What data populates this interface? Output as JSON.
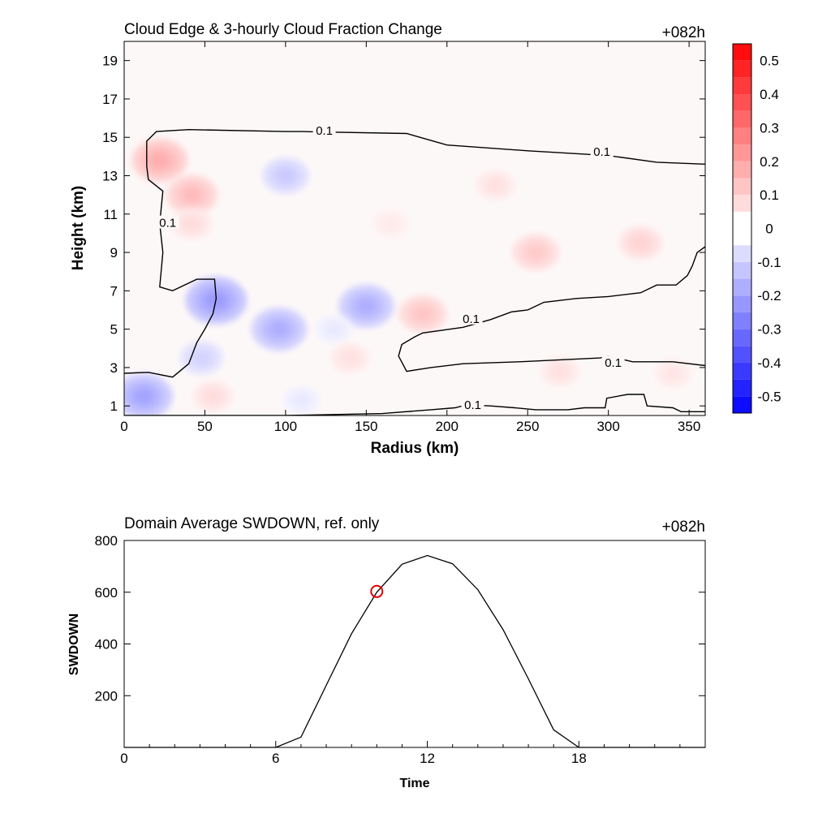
{
  "chart_data": [
    {
      "type": "heatmap",
      "title": "Cloud Edge & 3-hourly Cloud Fraction Change",
      "time_label": "+082h",
      "xlabel": "Radius (km)",
      "ylabel": "Height (km)",
      "xlim": [
        0,
        360
      ],
      "ylim": [
        0.5,
        20
      ],
      "xticks": [
        0,
        50,
        100,
        150,
        200,
        250,
        300,
        350
      ],
      "yticks": [
        1,
        3,
        5,
        7,
        9,
        11,
        13,
        15,
        17,
        19
      ],
      "colorbar": {
        "levels": [
          -0.55,
          -0.5,
          -0.45,
          -0.4,
          -0.35,
          -0.3,
          -0.25,
          -0.2,
          -0.15,
          -0.1,
          -0.05,
          0.05,
          0.1,
          0.15,
          0.2,
          0.25,
          0.3,
          0.35,
          0.4,
          0.45,
          0.5,
          0.55
        ],
        "tick_labels": [
          "0.5",
          "0.4",
          "0.3",
          "0.2",
          "0.1",
          "0",
          "-0.1",
          "-0.2",
          "-0.3",
          "-0.4",
          "-0.5"
        ],
        "tick_values": [
          0.5,
          0.4,
          0.3,
          0.2,
          0.1,
          0,
          -0.1,
          -0.2,
          -0.3,
          -0.4,
          -0.5
        ],
        "colormap": "blue-white-red",
        "min_color": "#0000ff",
        "max_color": "#ff0000"
      },
      "contour_level": 0.1,
      "contour_label": "0.1",
      "anomalies": [
        {
          "x": 22,
          "y": 13.8,
          "value": 0.18
        },
        {
          "x": 42,
          "y": 12.0,
          "value": 0.15
        },
        {
          "x": 42,
          "y": 10.5,
          "value": 0.08
        },
        {
          "x": 57,
          "y": 6.5,
          "value": -0.22
        },
        {
          "x": 48,
          "y": 3.5,
          "value": -0.1
        },
        {
          "x": 12,
          "y": 1.5,
          "value": -0.2
        },
        {
          "x": 100,
          "y": 13.0,
          "value": -0.12
        },
        {
          "x": 96,
          "y": 5.0,
          "value": -0.18
        },
        {
          "x": 150,
          "y": 6.2,
          "value": -0.18
        },
        {
          "x": 130,
          "y": 5.0,
          "value": -0.05
        },
        {
          "x": 165,
          "y": 10.5,
          "value": 0.05
        },
        {
          "x": 185,
          "y": 5.8,
          "value": 0.13
        },
        {
          "x": 230,
          "y": 12.5,
          "value": 0.07
        },
        {
          "x": 255,
          "y": 9.0,
          "value": 0.12
        },
        {
          "x": 320,
          "y": 9.5,
          "value": 0.1
        },
        {
          "x": 140,
          "y": 3.5,
          "value": 0.07
        },
        {
          "x": 270,
          "y": 2.8,
          "value": 0.07
        },
        {
          "x": 340,
          "y": 2.7,
          "value": 0.06
        },
        {
          "x": 55,
          "y": 1.5,
          "value": 0.08
        },
        {
          "x": 110,
          "y": 1.3,
          "value": -0.05
        }
      ],
      "cloud_edge_contours": [
        {
          "points": [
            [
              0,
              2.7
            ],
            [
              15,
              2.75
            ],
            [
              30,
              2.5
            ],
            [
              40,
              3.2
            ],
            [
              45,
              4.3
            ],
            [
              50,
              5.0
            ],
            [
              55,
              5.8
            ],
            [
              57,
              6.6
            ],
            [
              56,
              7.6
            ],
            [
              45,
              7.6
            ],
            [
              30,
              7.0
            ],
            [
              22,
              7.2
            ],
            [
              24,
              9.0
            ],
            [
              22,
              10.5
            ],
            [
              24,
              12.2
            ],
            [
              15,
              12.8
            ],
            [
              14,
              13.5
            ],
            [
              14,
              14.8
            ],
            [
              20,
              15.3
            ],
            [
              40,
              15.4
            ],
            [
              100,
              15.3
            ],
            [
              110,
              15.3
            ],
            [
              175,
              15.2
            ],
            [
              200,
              14.6
            ],
            [
              250,
              14.3
            ],
            [
              300,
              14.05
            ],
            [
              330,
              13.7
            ],
            [
              360,
              13.6
            ]
          ]
        },
        {
          "points": [
            [
              360,
              9.3
            ],
            [
              355,
              9.0
            ],
            [
              352,
              8.3
            ],
            [
              349,
              7.8
            ],
            [
              342,
              7.3
            ],
            [
              330,
              7.3
            ],
            [
              320,
              6.9
            ],
            [
              300,
              6.7
            ],
            [
              280,
              6.6
            ],
            [
              260,
              6.4
            ],
            [
              250,
              6.0
            ],
            [
              240,
              5.9
            ],
            [
              227,
              5.5
            ],
            [
              210,
              5.1
            ],
            [
              185,
              4.8
            ],
            [
              180,
              4.6
            ],
            [
              172,
              4.2
            ],
            [
              170,
              3.6
            ],
            [
              175,
              2.8
            ],
            [
              190,
              3.0
            ],
            [
              210,
              3.2
            ],
            [
              245,
              3.3
            ],
            [
              270,
              3.4
            ],
            [
              295,
              3.5
            ],
            [
              300,
              3.6
            ],
            [
              315,
              3.3
            ],
            [
              340,
              3.3
            ],
            [
              360,
              3.1
            ]
          ]
        },
        {
          "points": [
            [
              0,
              0.5
            ],
            [
              100,
              0.5
            ],
            [
              160,
              0.6
            ],
            [
              190,
              0.8
            ],
            [
              205,
              0.9
            ],
            [
              212,
              1.05
            ],
            [
              227,
              1.0
            ],
            [
              242,
              0.9
            ],
            [
              255,
              0.8
            ],
            [
              275,
              0.8
            ],
            [
              285,
              0.9
            ],
            [
              298,
              0.9
            ],
            [
              299,
              1.4
            ],
            [
              312,
              1.6
            ],
            [
              322,
              1.6
            ],
            [
              324,
              1.0
            ],
            [
              340,
              0.9
            ],
            [
              345,
              0.7
            ],
            [
              360,
              0.7
            ]
          ]
        }
      ],
      "contour_label_positions": [
        [
          124,
          15.3
        ],
        [
          296,
          14.2
        ],
        [
          27,
          10.5
        ],
        [
          215,
          5.5
        ],
        [
          303,
          3.2
        ],
        [
          216,
          1.0
        ]
      ]
    },
    {
      "type": "line",
      "title": "Domain Average SWDOWN, ref. only",
      "time_label": "+082h",
      "xlabel": "Time",
      "ylabel": "SWDOWN",
      "xlim": [
        0,
        23
      ],
      "ylim": [
        0,
        800
      ],
      "xticks": [
        0,
        6,
        12,
        18
      ],
      "yticks": [
        200,
        400,
        600,
        800
      ],
      "series": [
        {
          "x": [
            0,
            1,
            2,
            3,
            4,
            5,
            6,
            7,
            8,
            9,
            10,
            11,
            12,
            13,
            14,
            15,
            16,
            17,
            18,
            19,
            20,
            21,
            22,
            23
          ],
          "values": [
            0,
            0,
            0,
            0,
            0,
            0,
            0,
            40,
            240,
            440,
            600,
            708,
            742,
            710,
            610,
            455,
            265,
            68,
            0,
            0,
            0,
            0,
            0,
            0
          ]
        }
      ],
      "marker": {
        "x": 10,
        "y": 603,
        "color": "#e00000"
      }
    }
  ]
}
